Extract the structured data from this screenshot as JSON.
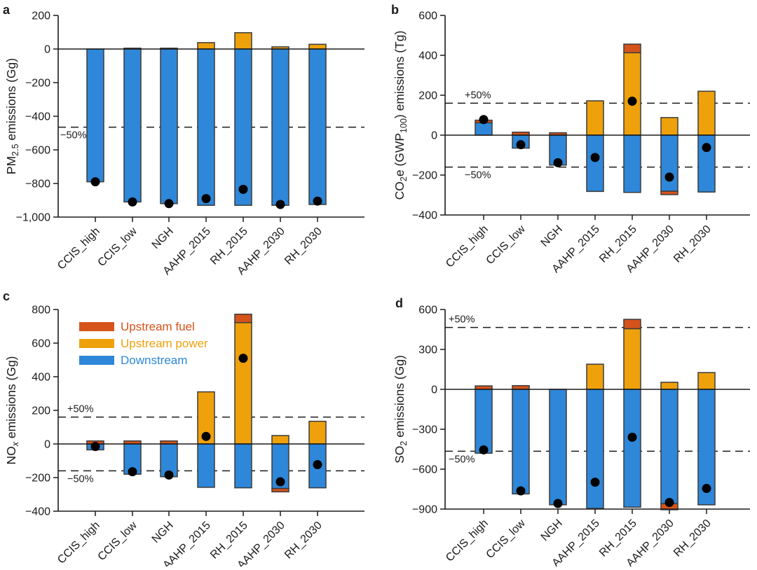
{
  "chart_data": {
    "type": "bar",
    "stacked": true,
    "orientation": "vertical",
    "grid": false,
    "categories": [
      "CCIS_high",
      "CCIS_low",
      "NGH",
      "AAHP_2015",
      "RH_2015",
      "AAHP_2030",
      "RH_2030"
    ],
    "colors": {
      "fuel": "#d6531b",
      "power": "#eea10b",
      "downstream": "#2e87d8",
      "net": "#000000",
      "outline": "#3c3c3c",
      "axis": "#1b1b1b"
    },
    "legend": {
      "location": "panel c upper-left",
      "items": [
        {
          "label": "Upstream fuel",
          "key": "fuel"
        },
        {
          "label": "Upstream power",
          "key": "power"
        },
        {
          "label": "Downstream",
          "key": "downstream"
        }
      ]
    },
    "net_marker": "black dot = net emissions change",
    "panels": [
      {
        "panel_label": "a",
        "ylabel": "PM2.5 emissions (Gg)",
        "ylabel_parts": [
          {
            "t": "PM"
          },
          {
            "t": "2.5",
            "sub": true
          },
          {
            "t": " emissions (Gg)"
          }
        ],
        "ylim": [
          -1000,
          200
        ],
        "ytick_values": [
          200,
          0,
          -200,
          -400,
          -600,
          -800,
          -1000
        ],
        "ytick_labels": [
          "200",
          "0",
          "−200",
          "−400",
          "−600",
          "−800",
          "−1,000"
        ],
        "ref_lines": [
          {
            "value": -465,
            "label": "−50%",
            "label_pos": "below"
          }
        ],
        "series": {
          "fuel": [
            0,
            0,
            0,
            0,
            0,
            0,
            0
          ],
          "power": [
            0,
            5,
            5,
            38,
            97,
            13,
            28
          ],
          "downstream": [
            -790,
            -910,
            -920,
            -930,
            -930,
            -930,
            -925
          ]
        },
        "net": [
          -790,
          -910,
          -920,
          -890,
          -835,
          -925,
          -905
        ]
      },
      {
        "panel_label": "b",
        "ylabel": "CO2e (GWP100) emissions (Tg)",
        "ylabel_parts": [
          {
            "t": "CO"
          },
          {
            "t": "2",
            "sub": true
          },
          {
            "t": "e (GWP"
          },
          {
            "t": "100",
            "sub": true
          },
          {
            "t": ") emissions (Tg)"
          }
        ],
        "ylim": [
          -400,
          600
        ],
        "ytick_values": [
          600,
          400,
          200,
          0,
          -200,
          -400
        ],
        "ytick_labels": [
          "600",
          "400",
          "200",
          "0",
          "−200",
          "−400"
        ],
        "ref_lines": [
          {
            "value": 160,
            "label": "+50%",
            "label_pos": "above"
          },
          {
            "value": -160,
            "label": "−50%",
            "label_pos": "below"
          }
        ],
        "series": {
          "fuel": [
            13,
            15,
            12,
            0,
            43,
            -17,
            0
          ],
          "power": [
            0,
            0,
            0,
            172,
            413,
            88,
            220
          ],
          "downstream": [
            62,
            -65,
            -150,
            -282,
            -287,
            -281,
            -285
          ]
        },
        "net": [
          78,
          -48,
          -138,
          -112,
          170,
          -210,
          -62
        ]
      },
      {
        "panel_label": "c",
        "ylabel": "NOx emissions (Gg)",
        "ylabel_parts": [
          {
            "t": "NO"
          },
          {
            "t": "x",
            "sub": true,
            "italic": true
          },
          {
            "t": " emissions (Gg)"
          }
        ],
        "ylim": [
          -400,
          800
        ],
        "ytick_values": [
          800,
          600,
          400,
          200,
          0,
          -200,
          -400
        ],
        "ytick_labels": [
          "800",
          "600",
          "400",
          "200",
          "0",
          "−200",
          "−400"
        ],
        "ref_lines": [
          {
            "value": 160,
            "label": "+50%",
            "label_pos": "above"
          },
          {
            "value": -160,
            "label": "−50%",
            "label_pos": "below"
          }
        ],
        "has_legend": true,
        "series": {
          "fuel": [
            18,
            18,
            18,
            0,
            50,
            -20,
            0
          ],
          "power": [
            0,
            0,
            0,
            310,
            722,
            50,
            135
          ],
          "downstream": [
            -35,
            -180,
            -195,
            -258,
            -261,
            -265,
            -261
          ]
        },
        "net": [
          -15,
          -165,
          -185,
          45,
          510,
          -225,
          -123
        ]
      },
      {
        "panel_label": "d",
        "ylabel": "SO2 emissions (Gg)",
        "ylabel_parts": [
          {
            "t": "SO"
          },
          {
            "t": "2",
            "sub": true
          },
          {
            "t": " emissions (Gg)"
          }
        ],
        "ylim": [
          -900,
          600
        ],
        "ytick_values": [
          600,
          300,
          0,
          -300,
          -600,
          -900
        ],
        "ytick_labels": [
          "600",
          "300",
          "0",
          "−300",
          "−600",
          "−900"
        ],
        "ref_lines": [
          {
            "value": 465,
            "label": "+50%",
            "label_pos": "above"
          },
          {
            "value": -465,
            "label": "−50%",
            "label_pos": "below"
          }
        ],
        "series": {
          "fuel": [
            26,
            28,
            0,
            0,
            70,
            -46,
            0
          ],
          "power": [
            0,
            0,
            0,
            189,
            456,
            53,
            126
          ],
          "downstream": [
            -480,
            -786,
            -868,
            -895,
            -886,
            -859,
            -868
          ]
        },
        "net": [
          -455,
          -763,
          -858,
          -698,
          -360,
          -850,
          -745
        ]
      }
    ]
  }
}
